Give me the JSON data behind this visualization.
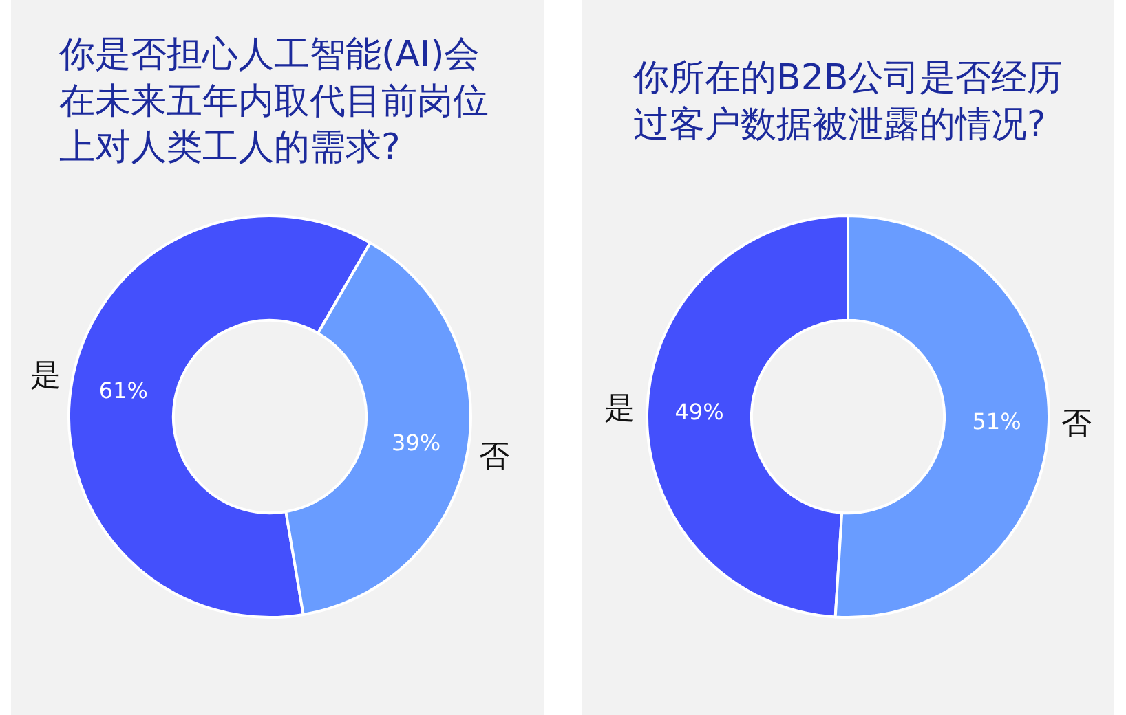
{
  "chart_data": [
    {
      "type": "donut",
      "title": "你是否担心人工智能(AI)会在未来五年内取代目前岗位上对人类工人的需求?",
      "categories": [
        "是",
        "否"
      ],
      "values": [
        61,
        39
      ],
      "colors": [
        "#4450fc",
        "#699cff"
      ],
      "value_labels": [
        "61%",
        "39%"
      ]
    },
    {
      "type": "donut",
      "title": "你所在的B2B公司是否经历过客户数据被泄露的情况?",
      "categories": [
        "是",
        "否"
      ],
      "values": [
        49,
        51
      ],
      "colors": [
        "#4450fc",
        "#699cff"
      ],
      "value_labels": [
        "49%",
        "51%"
      ]
    }
  ]
}
